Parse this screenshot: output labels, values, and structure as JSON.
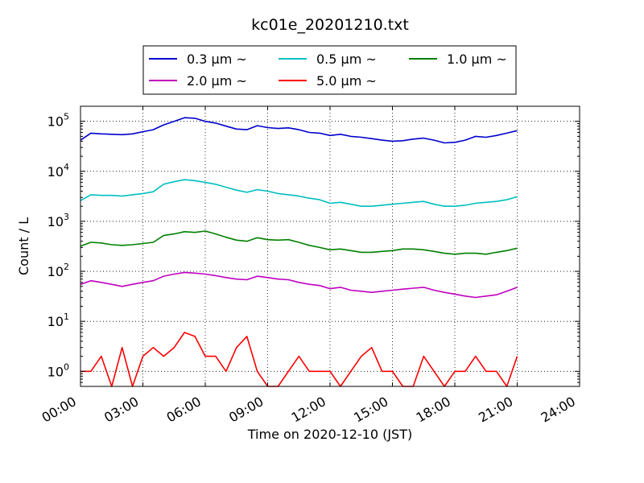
{
  "chart_data": {
    "type": "line",
    "title": "kc01e_20201210.txt",
    "xlabel": "Time on 2020-12-10 (JST)",
    "ylabel": "Count / L",
    "x_ticks": [
      "00:00",
      "03:00",
      "06:00",
      "09:00",
      "12:00",
      "15:00",
      "18:00",
      "21:00",
      "24:00"
    ],
    "xlim_hours": [
      0,
      24
    ],
    "yscale": "log",
    "ylim": [
      0.5,
      200000
    ],
    "y_ticks": [
      {
        "base": "10",
        "exp": "0",
        "value": 1
      },
      {
        "base": "10",
        "exp": "1",
        "value": 10
      },
      {
        "base": "10",
        "exp": "2",
        "value": 100
      },
      {
        "base": "10",
        "exp": "3",
        "value": 1000
      },
      {
        "base": "10",
        "exp": "4",
        "value": 10000
      },
      {
        "base": "10",
        "exp": "5",
        "value": 100000
      }
    ],
    "grid": true,
    "legend_position": "top-center",
    "x_hours": [
      0,
      0.5,
      1,
      1.5,
      2,
      2.5,
      3,
      3.5,
      4,
      4.5,
      5,
      5.5,
      6,
      6.5,
      7,
      7.5,
      8,
      8.5,
      9,
      9.5,
      10,
      10.5,
      11,
      11.5,
      12,
      12.5,
      13,
      13.5,
      14,
      14.5,
      15,
      15.5,
      16,
      16.5,
      17,
      17.5,
      18,
      18.5,
      19,
      19.5,
      20,
      20.5,
      21
    ],
    "series": [
      {
        "name": "0.3 μm ~",
        "color": "#0000cc",
        "values": [
          42000,
          58000,
          56000,
          55000,
          54000,
          56000,
          62000,
          68000,
          85000,
          100000,
          118000,
          115000,
          100000,
          92000,
          80000,
          70000,
          68000,
          82000,
          75000,
          72000,
          74000,
          68000,
          60000,
          58000,
          52000,
          55000,
          50000,
          48000,
          45000,
          42000,
          40000,
          41000,
          44000,
          46000,
          42000,
          37000,
          38000,
          42000,
          50000,
          48000,
          52000,
          58000,
          65000
        ]
      },
      {
        "name": "0.5 μm ~",
        "color": "#00bfbf",
        "values": [
          2600,
          3400,
          3300,
          3300,
          3200,
          3400,
          3600,
          3900,
          5500,
          6200,
          6800,
          6500,
          6000,
          5500,
          4800,
          4200,
          3800,
          4300,
          4000,
          3600,
          3400,
          3200,
          2900,
          2700,
          2300,
          2400,
          2200,
          2000,
          2000,
          2100,
          2200,
          2300,
          2400,
          2500,
          2200,
          2000,
          2000,
          2100,
          2300,
          2400,
          2500,
          2700,
          3100
        ]
      },
      {
        "name": "1.0 μm ~",
        "color": "#008000",
        "values": [
          320,
          380,
          370,
          340,
          330,
          340,
          360,
          380,
          520,
          560,
          620,
          600,
          640,
          560,
          480,
          420,
          400,
          470,
          430,
          420,
          430,
          380,
          330,
          300,
          270,
          280,
          260,
          240,
          240,
          250,
          260,
          280,
          280,
          270,
          250,
          230,
          220,
          230,
          230,
          220,
          240,
          260,
          290
        ]
      },
      {
        "name": "2.0 μm ~",
        "color": "#bf00bf",
        "values": [
          55,
          65,
          60,
          55,
          50,
          55,
          60,
          65,
          80,
          88,
          95,
          92,
          88,
          82,
          75,
          70,
          68,
          80,
          75,
          70,
          68,
          60,
          55,
          52,
          45,
          48,
          42,
          40,
          38,
          40,
          42,
          44,
          46,
          48,
          42,
          38,
          35,
          32,
          30,
          32,
          34,
          40,
          48
        ]
      },
      {
        "name": "5.0 μm ~",
        "color": "#ff0000",
        "values": [
          1,
          1,
          2,
          0.5,
          3,
          0.5,
          2,
          3,
          2,
          3,
          6,
          5,
          2,
          2,
          1,
          3,
          5,
          1,
          0.5,
          0.5,
          1,
          2,
          1,
          1,
          1,
          0.5,
          1,
          2,
          3,
          1,
          1,
          0.5,
          0.5,
          2,
          1,
          0.5,
          1,
          1,
          2,
          1,
          1,
          0.5,
          2
        ]
      }
    ]
  }
}
